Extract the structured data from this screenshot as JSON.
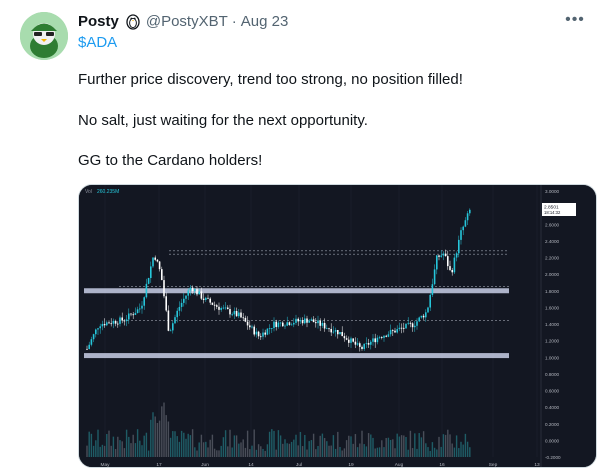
{
  "tweet": {
    "display_name": "Posty",
    "handle": "@PostyXBT",
    "separator": "·",
    "date": "Aug 23",
    "more_glyph": "•••",
    "cashtag": "$ADA",
    "lines": [
      "Further price discovery, trend too strong, no position filled!",
      "No salt, just waiting for the next opportunity.",
      "GG to the Cardano holders!"
    ]
  },
  "chart_data": {
    "type": "candlestick",
    "symbol_label": "Vol",
    "volume_label": "260.235M",
    "price_tag": "2.8501",
    "countdown": "18:14:32",
    "x_tick_labels": [
      "May",
      "17",
      "Jun",
      "14",
      "Jul",
      "19",
      "Aug",
      "16",
      "Sep",
      "13"
    ],
    "y_tick_labels": [
      "3.0000",
      "2.8000",
      "2.6000",
      "2.4000",
      "2.2000",
      "2.0000",
      "1.8000",
      "1.6000",
      "1.4000",
      "1.2000",
      "1.0000",
      "0.8000",
      "0.6000",
      "0.4000",
      "0.2000",
      "0.0000",
      "-0.2000"
    ],
    "ylim": [
      -0.2,
      3.0
    ],
    "horizontal_zones": [
      1.8,
      1.02
    ],
    "dashed_levels": [
      2.28,
      2.24,
      1.85,
      1.44
    ],
    "colors": {
      "background": "#131722",
      "up": "#26c6da",
      "down": "#ffffff",
      "zone": "#c9cfe6",
      "grid": "#1f2432"
    }
  }
}
